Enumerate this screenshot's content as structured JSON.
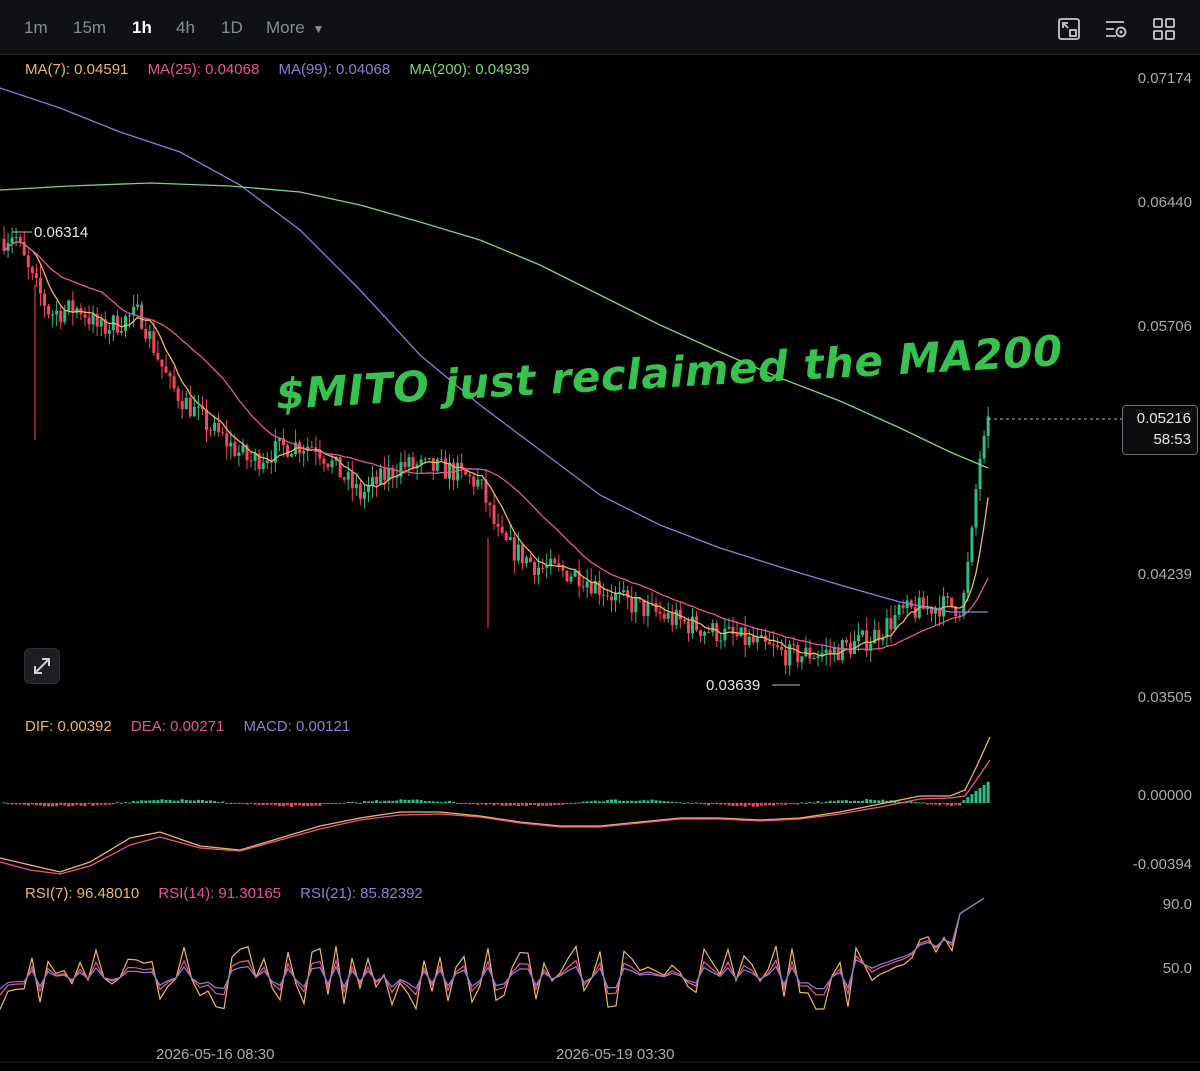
{
  "toolbar": {
    "timeframes": [
      "1m",
      "15m",
      "1h",
      "4h",
      "1D"
    ],
    "active": "1h",
    "more_label": "More"
  },
  "ma_legend": {
    "ma7": "MA(7): 0.04591",
    "ma25": "MA(25): 0.04068",
    "ma99": "MA(99): 0.04068",
    "ma200": "MA(200): 0.04939"
  },
  "price_axis": [
    "0.07174",
    "0.06440",
    "0.05706",
    "0.04239",
    "0.03505"
  ],
  "current_price": "0.05216",
  "countdown": "58:53",
  "high_label": "0.06314",
  "low_label": "0.03639",
  "annotation": "$MITO just reclaimed the MA200",
  "macd_legend": {
    "dif": "DIF: 0.00392",
    "dea": "DEA: 0.00271",
    "macd": "MACD: 0.00121"
  },
  "macd_axis": [
    "0.00000",
    "-0.00394"
  ],
  "rsi_legend": {
    "rsi7": "RSI(7): 96.48010",
    "rsi14": "RSI(14): 91.30165",
    "rsi21": "RSI(21): 85.82392"
  },
  "rsi_axis": [
    "90.0",
    "50.0"
  ],
  "time_labels": [
    "2026-05-16 08:30",
    "2026-05-19 03:30"
  ],
  "colors": {
    "up": "#2ebd85",
    "down": "#f6465d",
    "ma7": "#f0b85c",
    "ma25": "#e8559a",
    "ma99": "#8d7fd6",
    "ma200": "#7ed67a",
    "annotation": "#36c24f"
  },
  "chart_data": {
    "type": "candlestick",
    "title": "",
    "interval": "1h",
    "y_range": [
      0.0335,
      0.0735
    ],
    "moving_averages": [
      "MA(7)",
      "MA(25)",
      "MA(99)",
      "MA(200)"
    ],
    "price_key_points": [
      {
        "x": "start",
        "close": 0.0625
      },
      {
        "x": "early",
        "high": 0.06314
      },
      {
        "x": "mid",
        "close": 0.0455
      },
      {
        "x": "late",
        "low": 0.03639
      },
      {
        "x": "last",
        "close": 0.05216
      }
    ],
    "subcharts": [
      "MACD",
      "RSI"
    ]
  }
}
